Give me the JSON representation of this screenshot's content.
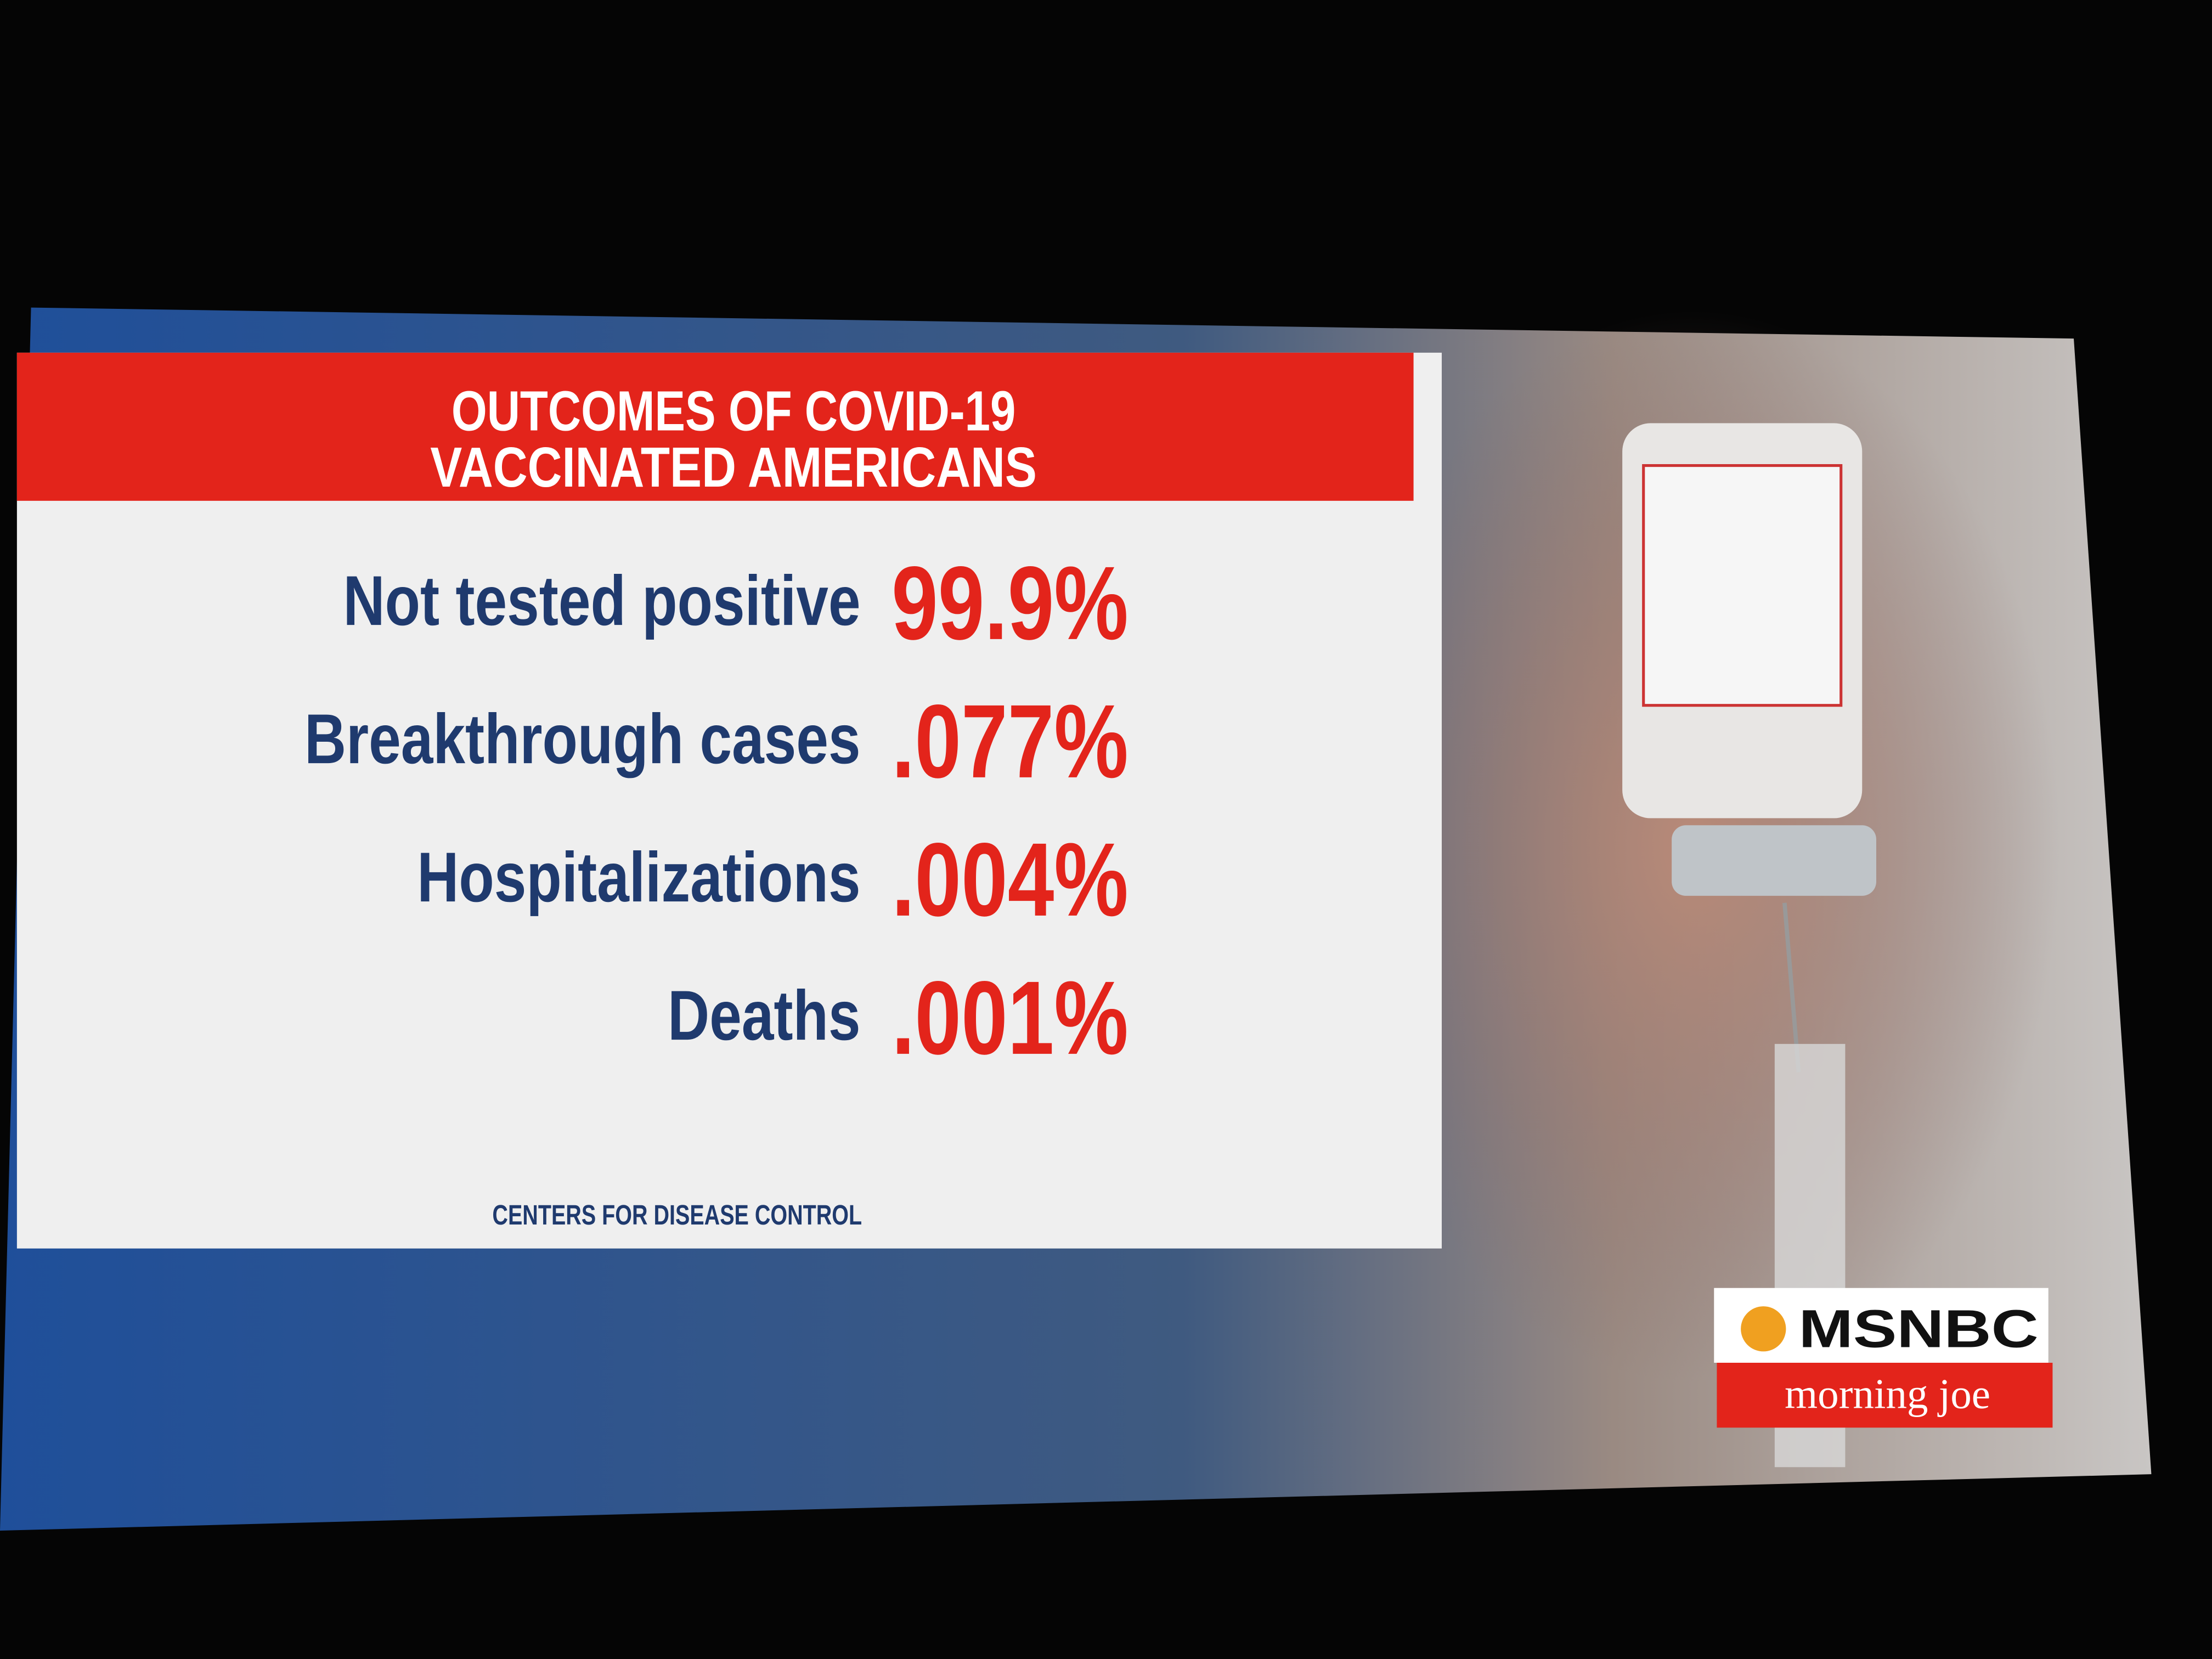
{
  "graphic": {
    "title": [
      "OUTCOMES OF COVID-19",
      "VACCINATED AMERICANS"
    ],
    "rows": [
      {
        "label": "Not tested positive",
        "value": "99.9%"
      },
      {
        "label": "Breakthrough cases",
        "value": ".077%"
      },
      {
        "label": "Hospitalizations",
        "value": ".004%"
      },
      {
        "label": "Deaths",
        "value": ".001%"
      }
    ],
    "source": "CENTERS FOR DISEASE CONTROL"
  },
  "logo": {
    "network": "MSNBC",
    "show": "morning joe"
  }
}
